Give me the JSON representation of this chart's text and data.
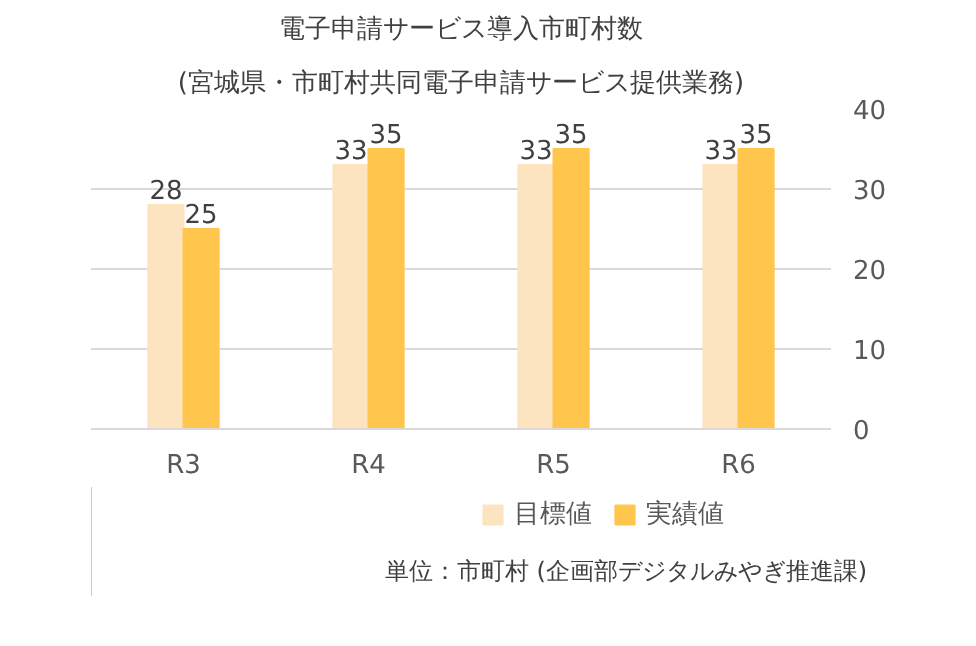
{
  "chart_data": {
    "type": "bar",
    "title": "電子申請サービス導入市町村数",
    "subtitle": "(宮城県・市町村共同電子申請サービス提供業務)",
    "categories": [
      "R3",
      "R4",
      "R5",
      "R6"
    ],
    "series": [
      {
        "name": "目標値",
        "color": "#fde4c0",
        "values": [
          28,
          33,
          33,
          33
        ]
      },
      {
        "name": "実績値",
        "color": "#ffc54d",
        "values": [
          25,
          35,
          35,
          35
        ]
      }
    ],
    "ylim": [
      0,
      40
    ],
    "yticks": [
      0,
      10,
      20,
      30,
      40
    ],
    "grid": "y",
    "legend": "bottom",
    "data_labels": true,
    "annotations": [
      "単位：市町村 (企画部デジタルみやぎ推進課)"
    ]
  }
}
